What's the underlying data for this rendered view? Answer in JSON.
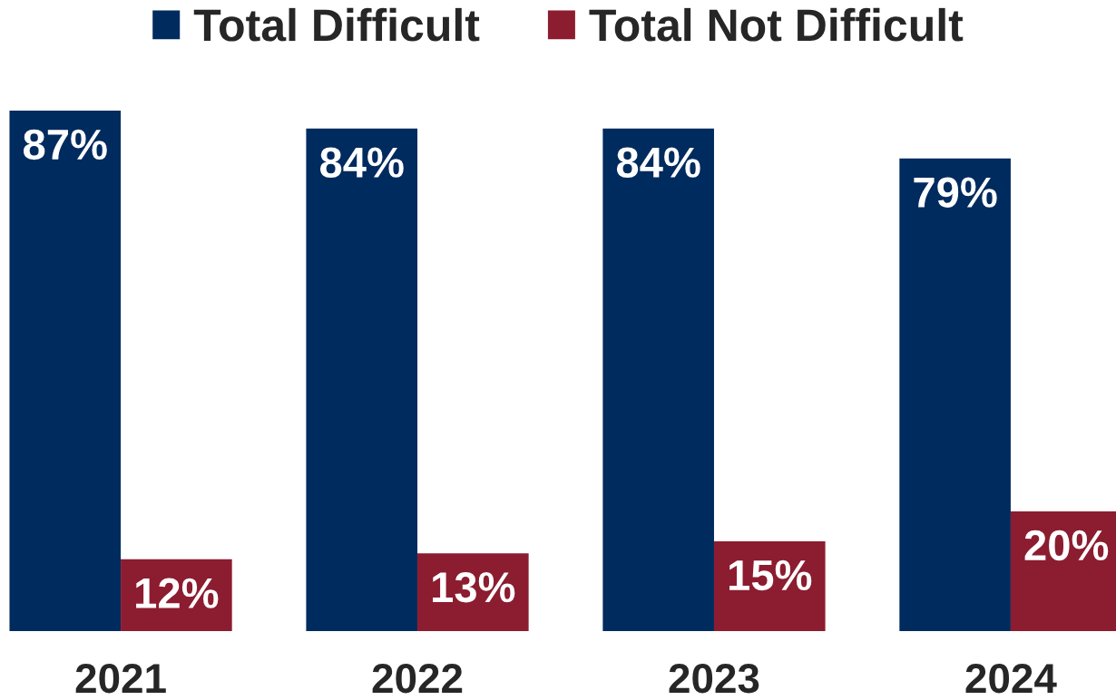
{
  "chart_data": {
    "type": "bar",
    "categories": [
      "2021",
      "2022",
      "2023",
      "2024"
    ],
    "series": [
      {
        "name": "Total Difficult",
        "color": "#002b5e",
        "values": [
          87,
          84,
          84,
          79
        ],
        "value_labels": [
          "87%",
          "84%",
          "84%",
          "79%"
        ]
      },
      {
        "name": "Total Not Difficult",
        "color": "#8c1c2f",
        "values": [
          12,
          13,
          15,
          20
        ],
        "value_labels": [
          "12%",
          "13%",
          "15%",
          "20%"
        ]
      }
    ],
    "legend": "top",
    "grid": false,
    "tick_labels": "x"
  }
}
